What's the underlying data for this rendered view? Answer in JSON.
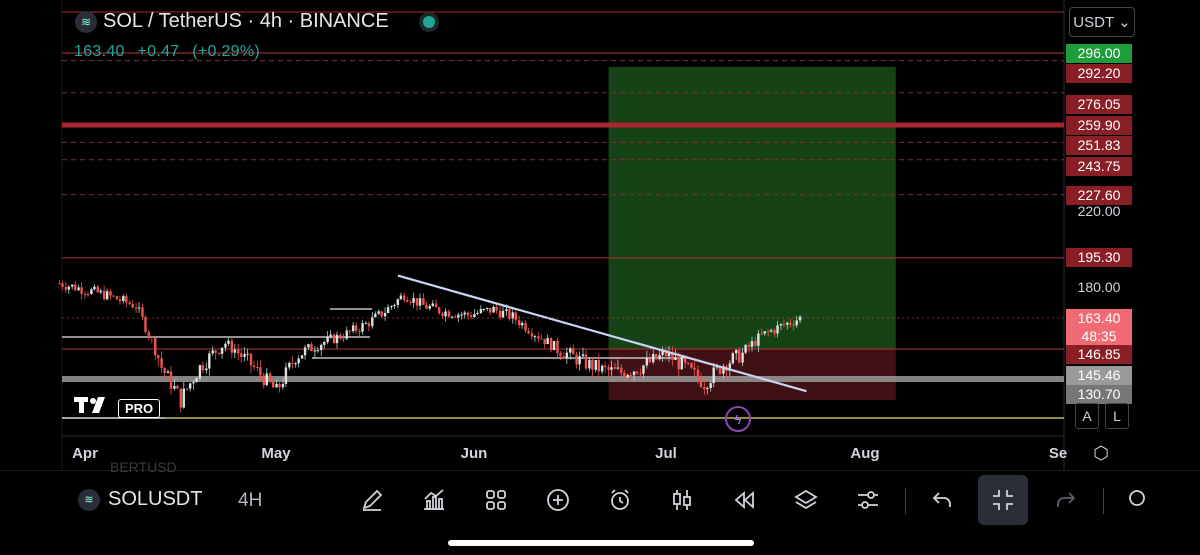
{
  "header": {
    "symbol_title": "SOL / TetherUS · 4h · BINANCE",
    "last_price": "163.40",
    "change": "+0.47",
    "change_pct": "(+0.29%)"
  },
  "currency_button": {
    "label": "USDT",
    "chevron": "chevron-down-icon"
  },
  "al_buttons": {
    "a": "A",
    "l": "L"
  },
  "watermark": {
    "mark": "TV",
    "pro": "PRO"
  },
  "toolbar": {
    "symbol": "SOLUSDT",
    "timeframe": "4H",
    "ghost_text": "BERTUSD",
    "icons": [
      "draw-icon",
      "indicators-icon",
      "layout-icon",
      "add-icon",
      "alert-icon",
      "candles-icon",
      "replay-icon",
      "layers-icon",
      "settings-sliders-icon",
      "undo-icon",
      "fullscreen-exit-icon",
      "redo-icon",
      "search-icon"
    ]
  },
  "colors": {
    "up": "#26a69a",
    "down": "#ef5350",
    "target_zone": "#1e5a1e",
    "stop_zone": "#4a1418",
    "resistance": "#b2323a",
    "trendline": "#c9d4f5"
  },
  "chart_data": {
    "type": "candlestick",
    "symbol": "SOL / TetherUS",
    "interval": "4h",
    "exchange": "BINANCE",
    "x_labels": [
      "Apr",
      "May",
      "Jun",
      "Jul",
      "Aug",
      "Se"
    ],
    "y_axis_labels": [
      "296.00",
      "292.20",
      "276.05",
      "259.90",
      "251.83",
      "243.75",
      "227.60",
      "220.00",
      "195.30",
      "180.00",
      "163.40",
      "48:35",
      "146.85",
      "145.46",
      "130.70"
    ],
    "y_range": [
      118,
      305
    ],
    "current_price": 163.4,
    "countdown": "48:35",
    "price_tags": [
      {
        "value": 296.0,
        "label": "296.00",
        "kind": "target"
      },
      {
        "value": 292.2,
        "label": "292.20",
        "kind": "level"
      },
      {
        "value": 276.05,
        "label": "276.05",
        "kind": "level"
      },
      {
        "value": 259.9,
        "label": "259.90",
        "kind": "level"
      },
      {
        "value": 251.83,
        "label": "251.83",
        "kind": "level"
      },
      {
        "value": 243.75,
        "label": "243.75",
        "kind": "level"
      },
      {
        "value": 227.6,
        "label": "227.60",
        "kind": "level"
      },
      {
        "value": 220.0,
        "label": "220.00",
        "kind": "axis"
      },
      {
        "value": 195.3,
        "label": "195.30",
        "kind": "level"
      },
      {
        "value": 180.0,
        "label": "180.00",
        "kind": "axis"
      },
      {
        "value": 163.4,
        "label": "163.40",
        "kind": "current"
      },
      {
        "value": 146.85,
        "label": "146.85",
        "kind": "level"
      },
      {
        "value": 145.46,
        "label": "145.46",
        "kind": "support"
      },
      {
        "value": 130.7,
        "label": "130.70",
        "kind": "support"
      }
    ],
    "horizontal_levels": [
      {
        "value": 296.0,
        "style": "solid"
      },
      {
        "value": 292.2,
        "style": "dashed"
      },
      {
        "value": 276.05,
        "style": "dashed"
      },
      {
        "value": 259.9,
        "style": "thick"
      },
      {
        "value": 251.83,
        "style": "dashed"
      },
      {
        "value": 243.75,
        "style": "dashed"
      },
      {
        "value": 227.6,
        "style": "dashed"
      },
      {
        "value": 195.3,
        "style": "solid"
      },
      {
        "value": 146.85,
        "style": "solid"
      },
      {
        "value": 130.7,
        "style": "yellow"
      }
    ],
    "support_band": {
      "from": 143.5,
      "to": 147.5
    },
    "long_position": {
      "start_date": "2024-06-22",
      "end_date": "2024-08-06",
      "entry": 146.85,
      "target": 296.0,
      "stop": 130.7
    },
    "trendline": {
      "from": {
        "date": "2024-05-20",
        "price": 186
      },
      "to": {
        "date": "2024-07-23",
        "price": 131
      }
    },
    "series": [
      {
        "date": "2024-03-28",
        "close": 182
      },
      {
        "date": "2024-04-04",
        "close": 176
      },
      {
        "date": "2024-04-09",
        "close": 170
      },
      {
        "date": "2024-04-13",
        "close": 140
      },
      {
        "date": "2024-04-16",
        "close": 128
      },
      {
        "date": "2024-04-19",
        "close": 140
      },
      {
        "date": "2024-04-23",
        "close": 150
      },
      {
        "date": "2024-04-27",
        "close": 141
      },
      {
        "date": "2024-05-01",
        "close": 131
      },
      {
        "date": "2024-05-04",
        "close": 144
      },
      {
        "date": "2024-05-08",
        "close": 150
      },
      {
        "date": "2024-05-12",
        "close": 155
      },
      {
        "date": "2024-05-15",
        "close": 160
      },
      {
        "date": "2024-05-18",
        "close": 167
      },
      {
        "date": "2024-05-21",
        "close": 176
      },
      {
        "date": "2024-05-24",
        "close": 170
      },
      {
        "date": "2024-05-27",
        "close": 167
      },
      {
        "date": "2024-05-31",
        "close": 165
      },
      {
        "date": "2024-06-04",
        "close": 168
      },
      {
        "date": "2024-06-07",
        "close": 164
      },
      {
        "date": "2024-06-11",
        "close": 154
      },
      {
        "date": "2024-06-14",
        "close": 147
      },
      {
        "date": "2024-06-18",
        "close": 142
      },
      {
        "date": "2024-06-21",
        "close": 139
      },
      {
        "date": "2024-06-24",
        "close": 138
      },
      {
        "date": "2024-06-27",
        "close": 140
      },
      {
        "date": "2024-07-01",
        "close": 145
      },
      {
        "date": "2024-07-04",
        "close": 140
      },
      {
        "date": "2024-07-07",
        "close": 134
      },
      {
        "date": "2024-07-10",
        "close": 141
      },
      {
        "date": "2024-07-13",
        "close": 145
      },
      {
        "date": "2024-07-16",
        "close": 154
      },
      {
        "date": "2024-07-19",
        "close": 159
      },
      {
        "date": "2024-07-22",
        "close": 163.4
      }
    ],
    "grid": false
  }
}
